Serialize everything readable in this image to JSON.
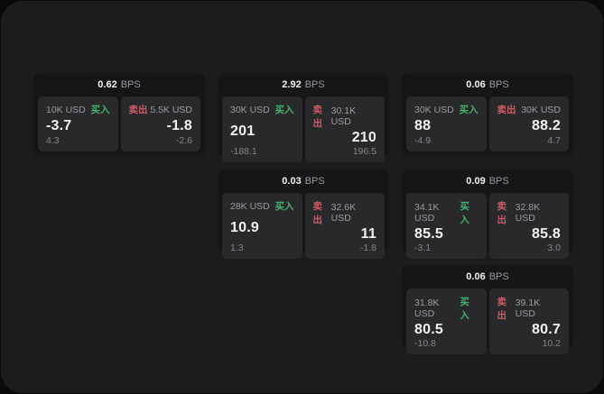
{
  "labels": {
    "buy": "买入",
    "sell": "卖出",
    "bps_unit": "BPS"
  },
  "colors": {
    "buy_green": "#43b36f",
    "sell_red": "#ce5b66",
    "window_bg": "#1c1c1e",
    "card_bg": "#161618",
    "panel_bg": "#29292b"
  },
  "cards": [
    {
      "bps": "0.62",
      "buy": {
        "amount": "10K USD",
        "price": "-3.7",
        "delta": "4.3"
      },
      "sell": {
        "amount": "5.5K USD",
        "price": "-1.8",
        "delta": "-2.6"
      }
    },
    {
      "bps": "2.92",
      "buy": {
        "amount": "30K USD",
        "price": "201",
        "delta": "-188.1"
      },
      "sell": {
        "amount": "30.1K USD",
        "price": "210",
        "delta": "196.5"
      }
    },
    {
      "bps": "0.06",
      "buy": {
        "amount": "30K USD",
        "price": "88",
        "delta": "-4.9"
      },
      "sell": {
        "amount": "30K USD",
        "price": "88.2",
        "delta": "4.7"
      }
    },
    {
      "bps": "0.03",
      "buy": {
        "amount": "28K USD",
        "price": "10.9",
        "delta": "1.3"
      },
      "sell": {
        "amount": "32.6K USD",
        "price": "11",
        "delta": "-1.8"
      }
    },
    {
      "bps": "0.09",
      "buy": {
        "amount": "34.1K USD",
        "price": "85.5",
        "delta": "-3.1"
      },
      "sell": {
        "amount": "32.8K USD",
        "price": "85.8",
        "delta": "3.0"
      }
    },
    {
      "bps": "0.06",
      "buy": {
        "amount": "31.8K USD",
        "price": "80.5",
        "delta": "-10.8"
      },
      "sell": {
        "amount": "39.1K USD",
        "price": "80.7",
        "delta": "10.2"
      }
    }
  ]
}
